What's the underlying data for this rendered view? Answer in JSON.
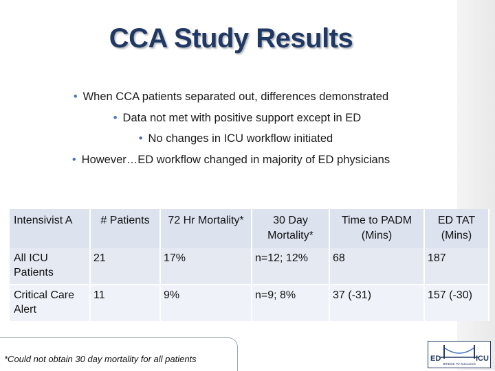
{
  "slide": {
    "title": "CCA Study Results",
    "bullets": [
      "When CCA patients separated out, differences demonstrated",
      "Data not met with positive support except in ED",
      "No changes in ICU workflow initiated",
      "However…ED workflow changed in majority of ED physicians"
    ],
    "bullet_color": "#4472c4",
    "title_color": "#1f3864"
  },
  "table": {
    "headers": [
      "Intensivist A",
      "# Patients",
      "72 Hr Mortality*",
      "30 Day Mortality*",
      "Time to PADM (Mins)",
      "ED TAT (Mins)"
    ],
    "rows": [
      [
        "All ICU Patients",
        "21",
        "17%",
        "n=12;  12%",
        "68",
        "187"
      ],
      [
        "Critical Care Alert",
        "11",
        "9%",
        "n=9;  8%",
        "37  (-31)",
        "157 (-30)"
      ]
    ]
  },
  "footnote": "*Could not obtain 30 day mortality for all patients",
  "logo": {
    "left": "ED",
    "right": "ICU",
    "tagline": "BRIDGE TO SUCCESS"
  }
}
